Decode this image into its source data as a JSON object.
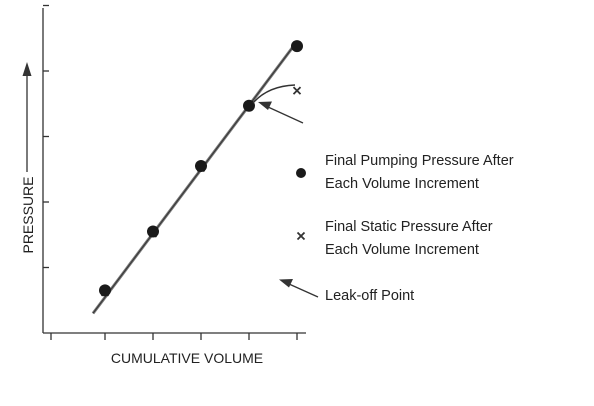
{
  "chart_data": {
    "type": "scatter",
    "xlabel": "CUMULATIVE VOLUME",
    "ylabel": "PRESSURE",
    "x_ticks": [
      1,
      2,
      3,
      4,
      5
    ],
    "xlim": [
      0,
      5.2
    ],
    "ylim": [
      0,
      5
    ],
    "grid": false,
    "series": [
      {
        "name_lines": [
          "Final Pumping Pressure After",
          "Each Volume Increment"
        ],
        "marker": "filled-circle",
        "x": [
          1,
          2,
          3,
          4,
          5
        ],
        "y": [
          0.65,
          1.55,
          2.55,
          3.47,
          4.38
        ]
      },
      {
        "name_lines": [
          "Final Static Pressure After",
          "Each Volume Increment"
        ],
        "marker": "x",
        "x": [
          1,
          2,
          3,
          4,
          5
        ],
        "y": [
          0.62,
          1.52,
          2.52,
          3.45,
          3.7
        ]
      }
    ],
    "fit_line": {
      "x": [
        0.75,
        5.0
      ],
      "y": [
        0.3,
        4.45
      ]
    },
    "annotation": {
      "text": "Leak-off Point",
      "x": 4,
      "y": 3.47
    },
    "legend_placement": "right"
  }
}
